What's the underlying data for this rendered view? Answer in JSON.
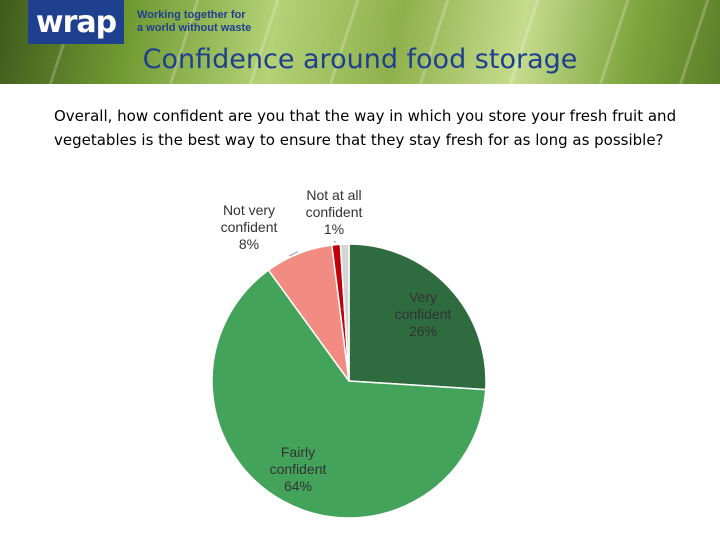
{
  "header": {
    "logo": "wrap",
    "tagline_line1": "Working together for",
    "tagline_line2": "a world without waste"
  },
  "title": "Confidence around food storage",
  "question": "Overall, how confident are you that the way in which you store your fresh fruit and vegetables is the best way to ensure that they stay fresh for as long as possible?",
  "chart_data": {
    "type": "pie",
    "slices": [
      {
        "label_lines": [
          "Very",
          "confident"
        ],
        "value": 26,
        "value_label": "26%",
        "color": "#2e6b3e",
        "label_color": "#333333"
      },
      {
        "label_lines": [
          "Fairly",
          "confident"
        ],
        "value": 64,
        "value_label": "64%",
        "color": "#43a35a",
        "label_color": "#333333"
      },
      {
        "label_lines": [
          "Not very",
          "confident"
        ],
        "value": 8,
        "value_label": "8%",
        "color": "#f28b82",
        "label_color": "#333333"
      },
      {
        "label_lines": [
          "Not at all",
          "confident"
        ],
        "value": 1,
        "value_label": "1%",
        "color": "#c0000a",
        "label_color": "#333333"
      },
      {
        "label_lines": [],
        "value": 1,
        "value_label": "",
        "color": "#d4d4d4",
        "label_color": "#333333"
      }
    ]
  }
}
